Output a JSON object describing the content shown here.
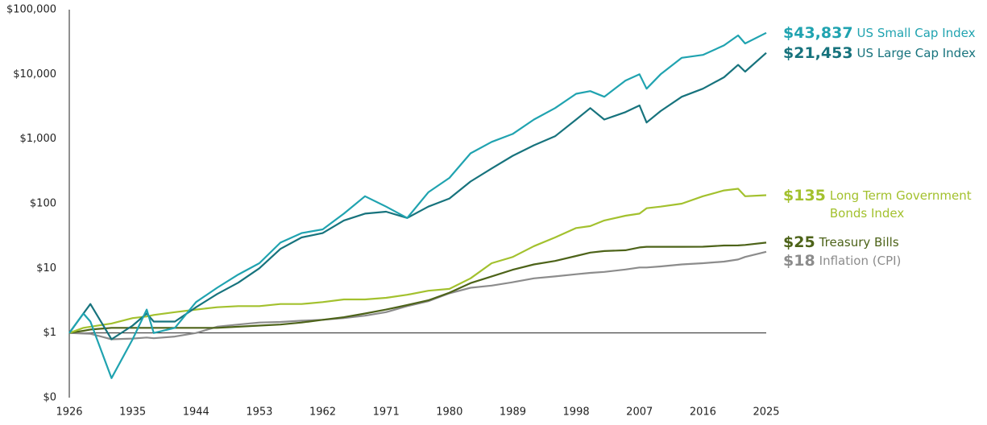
{
  "chart_data": {
    "type": "line",
    "log_scale": true,
    "x": [
      1926,
      1928,
      1929,
      1932,
      1935,
      1937,
      1938,
      1941,
      1944,
      1947,
      1950,
      1953,
      1956,
      1959,
      1962,
      1965,
      1968,
      1971,
      1974,
      1977,
      1980,
      1983,
      1986,
      1989,
      1992,
      1995,
      1998,
      2000,
      2002,
      2005,
      2007,
      2008,
      2010,
      2013,
      2016,
      2019,
      2021,
      2022,
      2025
    ],
    "xlim": [
      1926,
      2025
    ],
    "xticks": [
      1926,
      1935,
      1944,
      1953,
      1962,
      1971,
      1980,
      1989,
      1998,
      2007,
      2016,
      2025
    ],
    "ylim": [
      0.1,
      100000
    ],
    "yticks": [
      {
        "value": 0.1,
        "label": "$0"
      },
      {
        "value": 1,
        "label": "$1"
      },
      {
        "value": 10,
        "label": "$10"
      },
      {
        "value": 100,
        "label": "$100"
      },
      {
        "value": 1000,
        "label": "$1,000"
      },
      {
        "value": 10000,
        "label": "$10,000"
      },
      {
        "value": 100000,
        "label": "$100,000"
      }
    ],
    "series": [
      {
        "name": "US Small Cap Index",
        "color": "#20a3b0",
        "values": [
          1,
          2,
          1.5,
          0.2,
          0.8,
          2.3,
          1,
          1.2,
          3,
          5,
          8,
          12,
          25,
          35,
          40,
          70,
          130,
          90,
          60,
          150,
          250,
          600,
          900,
          1200,
          2000,
          3000,
          5000,
          5500,
          4500,
          8000,
          10000,
          6000,
          10000,
          18000,
          20000,
          28000,
          40000,
          30000,
          43837
        ],
        "value_labels": [
          null,
          null,
          null,
          null,
          null,
          null,
          null,
          null,
          null,
          null,
          null,
          null,
          null,
          null,
          null,
          null,
          null,
          null,
          null,
          null,
          null,
          null,
          null,
          null,
          null,
          null,
          null,
          null,
          null,
          null,
          null,
          null,
          null,
          null,
          null,
          null,
          null,
          null,
          "$43,837"
        ]
      },
      {
        "name": "US Large Cap Index",
        "color": "#17737d",
        "values": [
          1,
          2,
          2.8,
          0.8,
          1.3,
          2,
          1.5,
          1.5,
          2.5,
          4,
          6,
          10,
          20,
          30,
          35,
          55,
          70,
          75,
          60,
          90,
          120,
          220,
          350,
          550,
          800,
          1100,
          2000,
          3000,
          2000,
          2600,
          3300,
          1800,
          2700,
          4500,
          6000,
          9000,
          14000,
          11000,
          21453
        ],
        "value_labels": [
          null,
          null,
          null,
          null,
          null,
          null,
          null,
          null,
          null,
          null,
          null,
          null,
          null,
          null,
          null,
          null,
          null,
          null,
          null,
          null,
          null,
          null,
          null,
          null,
          null,
          null,
          null,
          null,
          null,
          null,
          null,
          null,
          null,
          null,
          null,
          null,
          null,
          null,
          "$21,453"
        ]
      },
      {
        "name": "Long Term Government Bonds Index",
        "color": "#a3c12e",
        "values": [
          1,
          1.2,
          1.25,
          1.4,
          1.7,
          1.8,
          1.9,
          2.1,
          2.3,
          2.5,
          2.6,
          2.6,
          2.8,
          2.8,
          3,
          3.3,
          3.3,
          3.5,
          3.9,
          4.5,
          4.8,
          7,
          12,
          15,
          22,
          30,
          42,
          45,
          55,
          65,
          70,
          85,
          90,
          100,
          130,
          160,
          170,
          130,
          135
        ],
        "value_labels": [
          null,
          null,
          null,
          null,
          null,
          null,
          null,
          null,
          null,
          null,
          null,
          null,
          null,
          null,
          null,
          null,
          null,
          null,
          null,
          null,
          null,
          null,
          null,
          null,
          null,
          null,
          null,
          null,
          null,
          null,
          null,
          null,
          null,
          null,
          null,
          null,
          null,
          null,
          "$135"
        ]
      },
      {
        "name": "Treasury Bills",
        "color": "#4d6319",
        "values": [
          1,
          1.08,
          1.13,
          1.2,
          1.2,
          1.2,
          1.2,
          1.2,
          1.2,
          1.2,
          1.25,
          1.3,
          1.35,
          1.45,
          1.6,
          1.75,
          2,
          2.3,
          2.7,
          3.2,
          4.2,
          5.9,
          7.5,
          9.5,
          11.5,
          13,
          15.5,
          17.5,
          18.5,
          19,
          21,
          21.5,
          21.5,
          21.5,
          21.6,
          22.5,
          22.6,
          23,
          25
        ],
        "value_labels": [
          null,
          null,
          null,
          null,
          null,
          null,
          null,
          null,
          null,
          null,
          null,
          null,
          null,
          null,
          null,
          null,
          null,
          null,
          null,
          null,
          null,
          null,
          null,
          null,
          null,
          null,
          null,
          null,
          null,
          null,
          null,
          null,
          null,
          null,
          null,
          null,
          null,
          null,
          "$25"
        ]
      },
      {
        "name": "Inflation (CPI)",
        "color": "#8c8c8c",
        "values": [
          1,
          0.98,
          0.97,
          0.8,
          0.82,
          0.85,
          0.83,
          0.88,
          1,
          1.25,
          1.35,
          1.45,
          1.48,
          1.55,
          1.6,
          1.7,
          1.85,
          2.1,
          2.6,
          3.1,
          4.1,
          5,
          5.4,
          6.1,
          7,
          7.5,
          8.1,
          8.5,
          8.8,
          9.6,
          10.3,
          10.3,
          10.7,
          11.5,
          12,
          12.7,
          13.7,
          15,
          18
        ],
        "value_labels": [
          null,
          null,
          null,
          null,
          null,
          null,
          null,
          null,
          null,
          null,
          null,
          null,
          null,
          null,
          null,
          null,
          null,
          null,
          null,
          null,
          null,
          null,
          null,
          null,
          null,
          null,
          null,
          null,
          null,
          null,
          null,
          null,
          null,
          null,
          null,
          null,
          null,
          null,
          "$18"
        ]
      }
    ]
  }
}
